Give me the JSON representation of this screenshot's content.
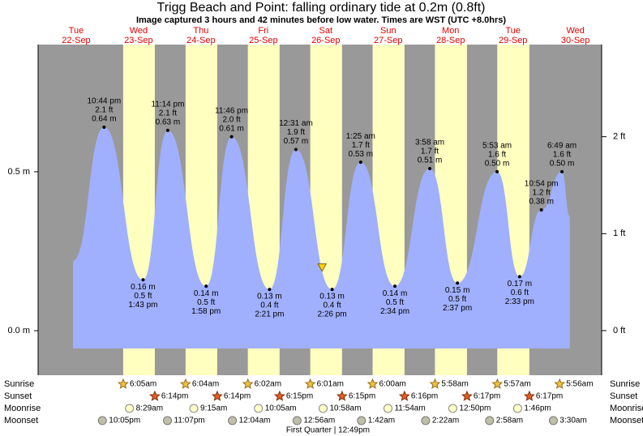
{
  "chart_data": {
    "type": "tide",
    "title": "Trigg Beach and Point: falling  ordinary tide at 0.2m (0.8ft)",
    "subtitle": "Image captured 3 hours and 42 minutes before low water. Times are WST (UTC +8.0hrs)",
    "days": [
      {
        "weekday": "Tue",
        "date": "22-Sep"
      },
      {
        "weekday": "Wed",
        "date": "23-Sep"
      },
      {
        "weekday": "Thu",
        "date": "24-Sep"
      },
      {
        "weekday": "Fri",
        "date": "25-Sep"
      },
      {
        "weekday": "Sat",
        "date": "26-Sep"
      },
      {
        "weekday": "Sun",
        "date": "27-Sep"
      },
      {
        "weekday": "Mon",
        "date": "28-Sep"
      },
      {
        "weekday": "Tue",
        "date": "29-Sep"
      },
      {
        "weekday": "Wed",
        "date": "30-Sep"
      }
    ],
    "xlim": [
      -0.11,
      8.92
    ],
    "ylim": [
      -0.14,
      0.9
    ],
    "yticks": [
      {
        "value": 0.5,
        "label": "0.5 m"
      },
      {
        "value": 0,
        "label": "0.0 m"
      }
    ],
    "y2lim": [
      -0.46,
      2.95
    ],
    "y2ticks": [
      {
        "value": 2,
        "label": "2 ft"
      },
      {
        "value": 1,
        "label": "1 ft"
      },
      {
        "value": 0,
        "label": "0 ft"
      }
    ],
    "colors": {
      "night": "#999999",
      "day": "#ffffc0",
      "water": "#a0b0ff",
      "days": "#e00000"
    },
    "tide": {
      "x": [
        0.45,
        0.947,
        1.572,
        1.968,
        2.582,
        2.99,
        3.598,
        4.021,
        4.601,
        5.059,
        5.607,
        6.166,
        6.609,
        7.245,
        7.606,
        7.954,
        8.284,
        8.41
      ],
      "values": [
        0.22,
        0.64,
        0.16,
        0.63,
        0.14,
        0.61,
        0.13,
        0.57,
        0.13,
        0.53,
        0.14,
        0.51,
        0.15,
        0.5,
        0.17,
        0.38,
        0.5,
        0.36
      ],
      "value_labels": [
        null,
        "0.64 m",
        "0.16 m",
        "0.63 m",
        "0.14 m",
        "0.61 m",
        "0.13 m",
        "0.57 m",
        "0.13 m",
        "0.53 m",
        "0.14 m",
        "0.51 m",
        "0.15 m",
        "0.50 m",
        "0.17 m",
        "0.38 m",
        "0.50 m",
        null
      ],
      "feet": [
        null,
        "2.1 ft",
        "0.5 ft",
        "2.1 ft",
        "0.5 ft",
        "2.0 ft",
        "0.4 ft",
        "1.9 ft",
        "0.4 ft",
        "1.7 ft",
        "0.5 ft",
        "1.7 ft",
        "0.5 ft",
        "1.6 ft",
        "0.6 ft",
        "1.2 ft",
        "1.6 ft",
        null
      ],
      "times": [
        null,
        "10:44 pm",
        "1:43 pm",
        "11:14 pm",
        "1:58 pm",
        "11:46 pm",
        "2:21 pm",
        "12:31 am",
        "2:26 pm",
        "1:25 am",
        "2:34 pm",
        "3:58 am",
        "2:37 pm",
        "5:53 am",
        "2:33 pm",
        "10:54 pm",
        "6:49 am",
        null
      ]
    },
    "now": {
      "x": 4.44,
      "value": 0.2
    },
    "rows": [
      "Sunrise",
      "Sunset",
      "Moonrise",
      "Moonset"
    ],
    "sunrise": {
      "x": [
        1.253,
        2.253,
        3.251,
        4.251,
        5.25,
        6.249,
        7.248,
        8.247
      ],
      "labels": [
        "6:05am",
        "6:04am",
        "6:02am",
        "6:01am",
        "6:00am",
        "5:58am",
        "5:57am",
        "5:56am"
      ]
    },
    "sunset": {
      "x": [
        1.76,
        2.76,
        3.76,
        4.76,
        5.761,
        6.762,
        7.762
      ],
      "labels": [
        "6:14pm",
        "6:14pm",
        "6:15pm",
        "6:15pm",
        "6:16pm",
        "6:17pm",
        "6:17pm"
      ]
    },
    "moonrise": {
      "x": [
        1.354,
        2.385,
        3.42,
        4.457,
        5.496,
        6.535,
        7.574
      ],
      "labels": [
        "8:29am",
        "9:15am",
        "10:05am",
        "10:58am",
        "11:54am",
        "12:50pm",
        "1:46pm"
      ]
    },
    "moonset": {
      "x": [
        0.92,
        1.963,
        3.003,
        4.039,
        5.071,
        6.099,
        7.124,
        8.146
      ],
      "labels": [
        "10:05pm",
        "11:07pm",
        "12:04am",
        "12:56am",
        "1:42am",
        "2:22am",
        "2:58am",
        "3:30am"
      ]
    },
    "moon_phase": {
      "x": 4.534,
      "label": "First Quarter | 12:49pm"
    }
  }
}
